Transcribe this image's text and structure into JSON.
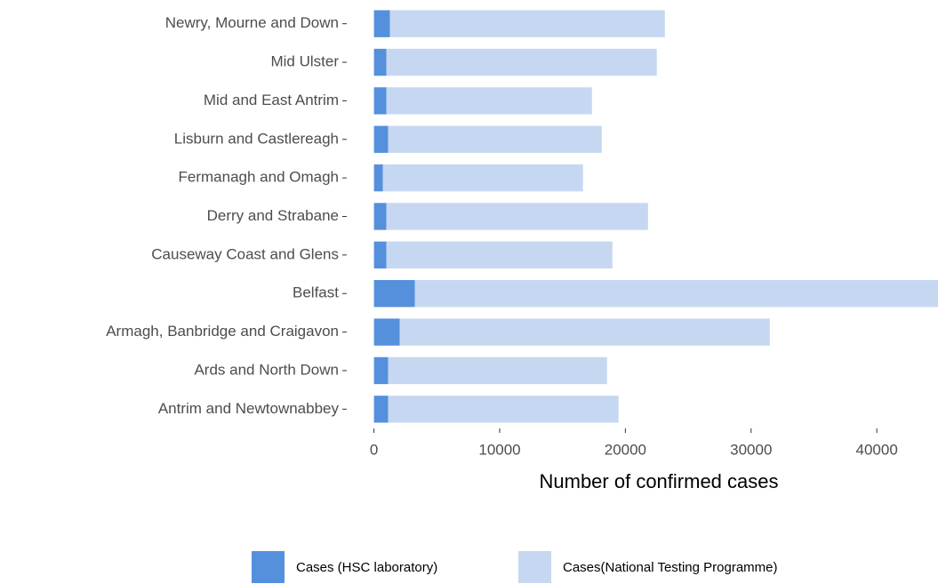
{
  "chart_data": {
    "type": "bar",
    "orientation": "horizontal",
    "stacked": true,
    "xlabel": "Number of confirmed cases",
    "categories": [
      "Newry, Mourne and Down",
      "Mid Ulster",
      "Mid and East Antrim",
      "Lisburn and Castlereagh",
      "Fermanagh and Omagh",
      "Derry and Strabane",
      "Causeway Coast and Glens",
      "Belfast",
      "Armagh, Banbridge and Craigavon",
      "Ards and North Down",
      "Antrim and Newtownabbey"
    ],
    "series": [
      {
        "name": "Cases (HSC laboratory)",
        "color": "#5590dc",
        "values": [
          1270,
          990,
          990,
          1130,
          710,
          990,
          990,
          3260,
          2050,
          1130,
          1130
        ]
      },
      {
        "name": "Cases(National Testing Programme)",
        "color": "#c6d8f1",
        "values": [
          21870,
          21510,
          16350,
          16990,
          15920,
          20810,
          17980,
          43740,
          29440,
          17410,
          18330
        ]
      }
    ],
    "xlim": [
      -1600,
      44870
    ],
    "xticks": [
      0,
      10000,
      20000,
      30000,
      40000
    ],
    "legend": "bottom"
  }
}
